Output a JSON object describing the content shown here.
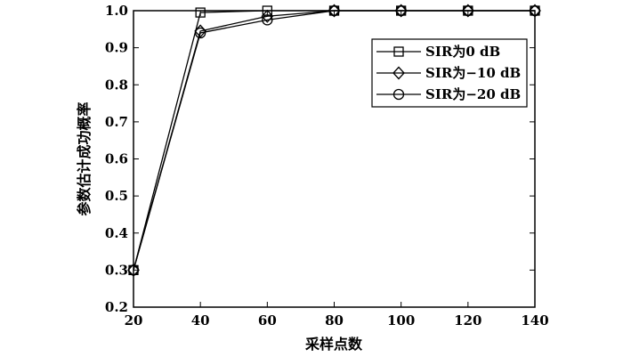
{
  "chart_data": {
    "type": "line",
    "xlabel": "采样点数",
    "ylabel": "参数估计成功概率",
    "xlim": [
      20,
      140
    ],
    "ylim": [
      0.2,
      1.0
    ],
    "x_ticks": [
      "20",
      "40",
      "60",
      "80",
      "100",
      "120",
      "140"
    ],
    "y_ticks": [
      "0.2",
      "0.3",
      "0.4",
      "0.5",
      "0.6",
      "0.7",
      "0.8",
      "0.9",
      "1.0"
    ],
    "x": [
      20,
      40,
      60,
      80,
      100,
      120,
      140
    ],
    "grid": false,
    "legend_position": "top-right",
    "series": [
      {
        "name": "SIR为0 dB",
        "marker": "square",
        "values": [
          0.3,
          0.995,
          1.0,
          1.0,
          1.0,
          1.0,
          1.0
        ]
      },
      {
        "name": "SIR为−10 dB",
        "marker": "diamond",
        "values": [
          0.3,
          0.945,
          0.985,
          1.0,
          1.0,
          1.0,
          1.0
        ]
      },
      {
        "name": "SIR为−20 dB",
        "marker": "circle",
        "values": [
          0.3,
          0.94,
          0.975,
          1.0,
          1.0,
          1.0,
          1.0
        ]
      }
    ]
  }
}
